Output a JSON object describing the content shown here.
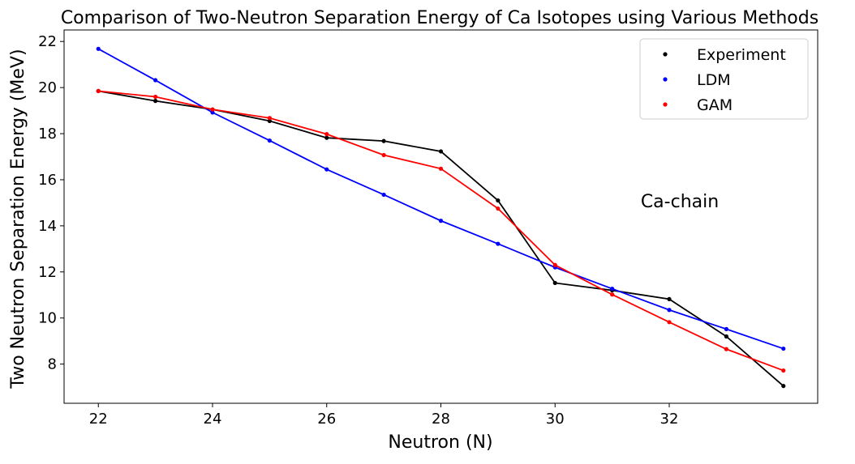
{
  "chart_data": {
    "type": "line",
    "title": "Comparison of Two-Neutron Separation Energy of Ca Isotopes using Various Methods",
    "xlabel": "Neutron (N)",
    "ylabel": "Two Neutron Separation Energy (MeV)",
    "xlim": [
      21.4,
      34.6
    ],
    "ylim": [
      6.3,
      22.5
    ],
    "xticks": [
      22,
      24,
      26,
      28,
      30,
      32
    ],
    "yticks": [
      8,
      10,
      12,
      14,
      16,
      18,
      20,
      22
    ],
    "x": [
      22,
      23,
      24,
      25,
      26,
      27,
      28,
      29,
      30,
      31,
      32,
      33,
      34
    ],
    "series": [
      {
        "name": "Experiment",
        "color": "#000000",
        "values": [
          19.85,
          19.42,
          19.05,
          18.55,
          17.82,
          17.68,
          17.23,
          15.1,
          11.52,
          11.2,
          10.82,
          9.2,
          7.05
        ]
      },
      {
        "name": "LDM",
        "color": "#0000ff",
        "values": [
          21.68,
          20.32,
          18.92,
          17.7,
          16.45,
          15.35,
          14.22,
          13.22,
          12.2,
          11.27,
          10.35,
          9.52,
          8.67
        ]
      },
      {
        "name": "GAM",
        "color": "#ff0000",
        "values": [
          19.85,
          19.6,
          19.05,
          18.68,
          17.98,
          17.07,
          16.48,
          14.75,
          12.3,
          11.02,
          9.82,
          8.65,
          7.72
        ]
      }
    ],
    "grid": false,
    "legend": "top-right",
    "annotations": [
      {
        "text": "Ca-chain",
        "x": 31.5,
        "y": 14.8
      }
    ]
  }
}
